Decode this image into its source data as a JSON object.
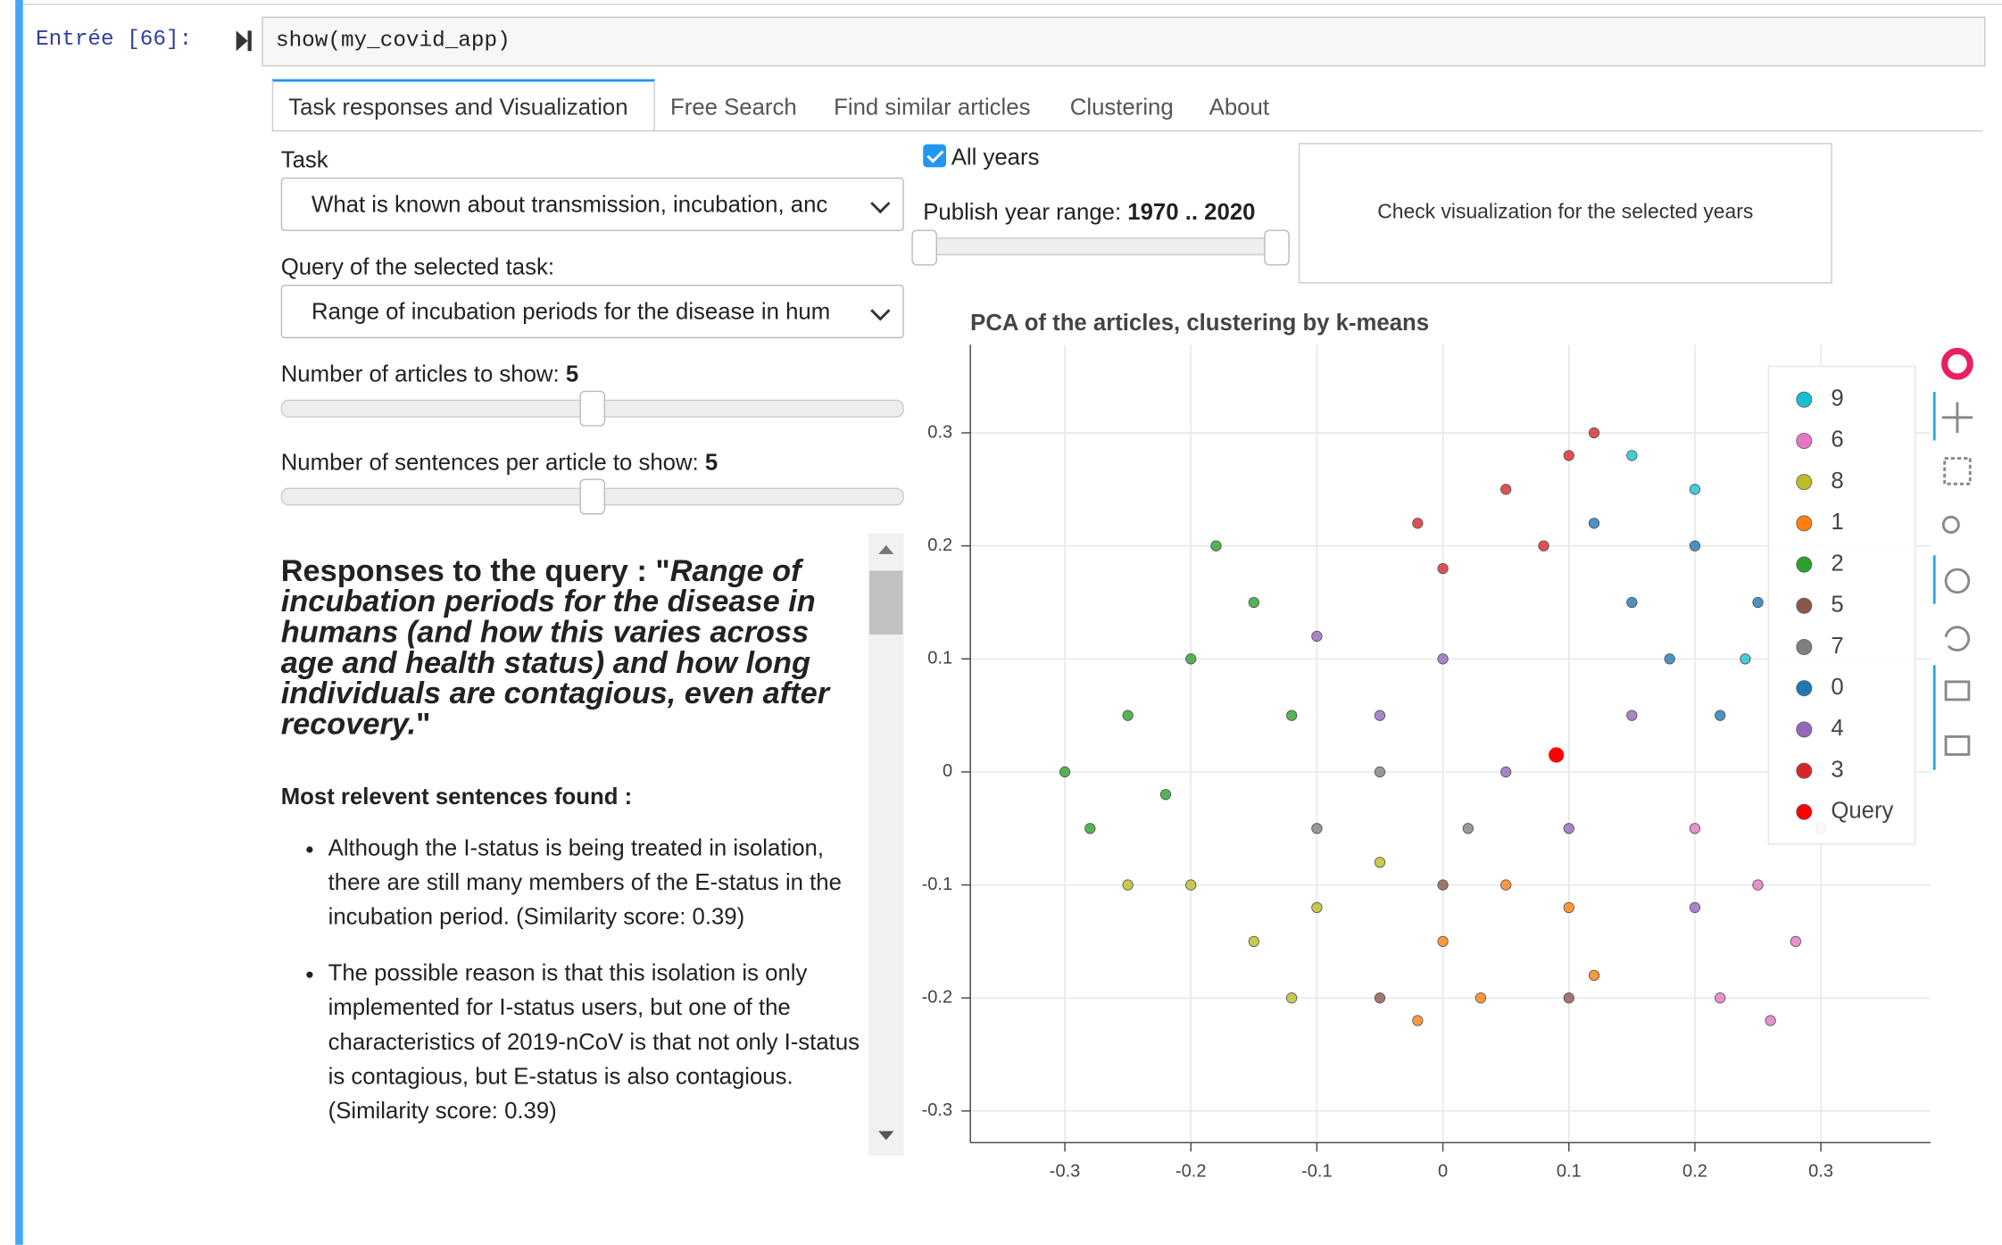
{
  "cell": {
    "prompt": "Entrée [66]:",
    "code": "show(my_covid_app)"
  },
  "tabs": [
    "Task responses and Visualization",
    "Free Search",
    "Find similar articles",
    "Clustering",
    "About"
  ],
  "controls": {
    "task_label": "Task",
    "task_value": "What is known about transmission, incubation, anc",
    "query_label": "Query of the selected task:",
    "query_value": "Range of incubation periods for the disease in hum",
    "articles_label": "Number of articles to show:",
    "articles_value": 5,
    "sentences_label": "Number of sentences per article to show:",
    "sentences_value": 5,
    "all_years": "All years",
    "year_range_label": "Publish year range:",
    "year_range": "1970 .. 2020",
    "button": "Check visualization for the selected years"
  },
  "responses": {
    "heading_prefix": "Responses to the query : \"",
    "heading_query": "Range of incubation periods for the disease in humans (and how this varies across age and health status) and how long individuals are contagious, even after recovery.",
    "heading_suffix": "\"",
    "subheading": "Most relevent sentences found :",
    "items": [
      "Although the I-status is being treated in isolation, there are still many members of the E-status in the incubation period. (Similarity score: 0.39)",
      "The possible reason is that this isolation is only implemented for I-status users, but one of the characteristics of 2019-nCoV is that not only I-status is contagious, but E-status is also contagious.(Similarity score: 0.39)"
    ]
  },
  "chart_data": {
    "type": "scatter",
    "title": "PCA of the articles, clustering by k-means",
    "xlim": [
      -0.375,
      0.387
    ],
    "ylim": [
      -0.328,
      0.378
    ],
    "xticks": [
      -0.3,
      -0.2,
      -0.1,
      0,
      0.1,
      0.2,
      0.3
    ],
    "yticks": [
      -0.3,
      -0.2,
      -0.1,
      0,
      0.1,
      0.2,
      0.3
    ],
    "grid": true,
    "legend": "top-right",
    "series": [
      {
        "name": "9",
        "color": "#17becf",
        "x": [
          0.2,
          0.15,
          0.24
        ],
        "y": [
          0.25,
          0.28,
          0.1
        ]
      },
      {
        "name": "6",
        "color": "#e377c2",
        "x": [
          0.2,
          0.25,
          0.28,
          0.22,
          0.3,
          0.26
        ],
        "y": [
          -0.05,
          -0.1,
          -0.15,
          -0.2,
          -0.05,
          -0.22
        ]
      },
      {
        "name": "8",
        "color": "#bcbd22",
        "x": [
          -0.2,
          -0.15,
          -0.1,
          -0.05,
          -0.25,
          -0.12
        ],
        "y": [
          -0.1,
          -0.15,
          -0.12,
          -0.08,
          -0.1,
          -0.2
        ]
      },
      {
        "name": "1",
        "color": "#ff7f0e",
        "x": [
          0.0,
          0.05,
          0.1,
          0.03,
          0.12,
          -0.02
        ],
        "y": [
          -0.15,
          -0.1,
          -0.12,
          -0.2,
          -0.18,
          -0.22
        ]
      },
      {
        "name": "2",
        "color": "#2ca02c",
        "x": [
          -0.3,
          -0.25,
          -0.2,
          -0.15,
          -0.22,
          -0.28,
          -0.18,
          -0.12
        ],
        "y": [
          0.0,
          0.05,
          0.1,
          0.15,
          -0.02,
          -0.05,
          0.2,
          0.05
        ]
      },
      {
        "name": "5",
        "color": "#8c564b",
        "x": [
          0.0,
          0.1,
          -0.05
        ],
        "y": [
          -0.1,
          -0.2,
          -0.2
        ]
      },
      {
        "name": "7",
        "color": "#7f7f7f",
        "x": [
          -0.1,
          -0.05,
          0.02
        ],
        "y": [
          -0.05,
          0.0,
          -0.05
        ]
      },
      {
        "name": "0",
        "color": "#1f77b4",
        "x": [
          0.15,
          0.2,
          0.18,
          0.22,
          0.12,
          0.25
        ],
        "y": [
          0.15,
          0.2,
          0.1,
          0.05,
          0.22,
          0.15
        ]
      },
      {
        "name": "4",
        "color": "#9467bd",
        "x": [
          -0.05,
          0.0,
          0.05,
          0.1,
          -0.1,
          0.15,
          0.2
        ],
        "y": [
          0.05,
          0.1,
          0.0,
          -0.05,
          0.12,
          0.05,
          -0.12
        ]
      },
      {
        "name": "3",
        "color": "#d62728",
        "x": [
          0.05,
          0.1,
          0.0,
          0.08,
          0.12,
          -0.02
        ],
        "y": [
          0.25,
          0.28,
          0.18,
          0.2,
          0.3,
          0.22
        ]
      },
      {
        "name": "Query",
        "color": "#ff0000",
        "x": [
          0.09
        ],
        "y": [
          0.015
        ]
      }
    ]
  }
}
